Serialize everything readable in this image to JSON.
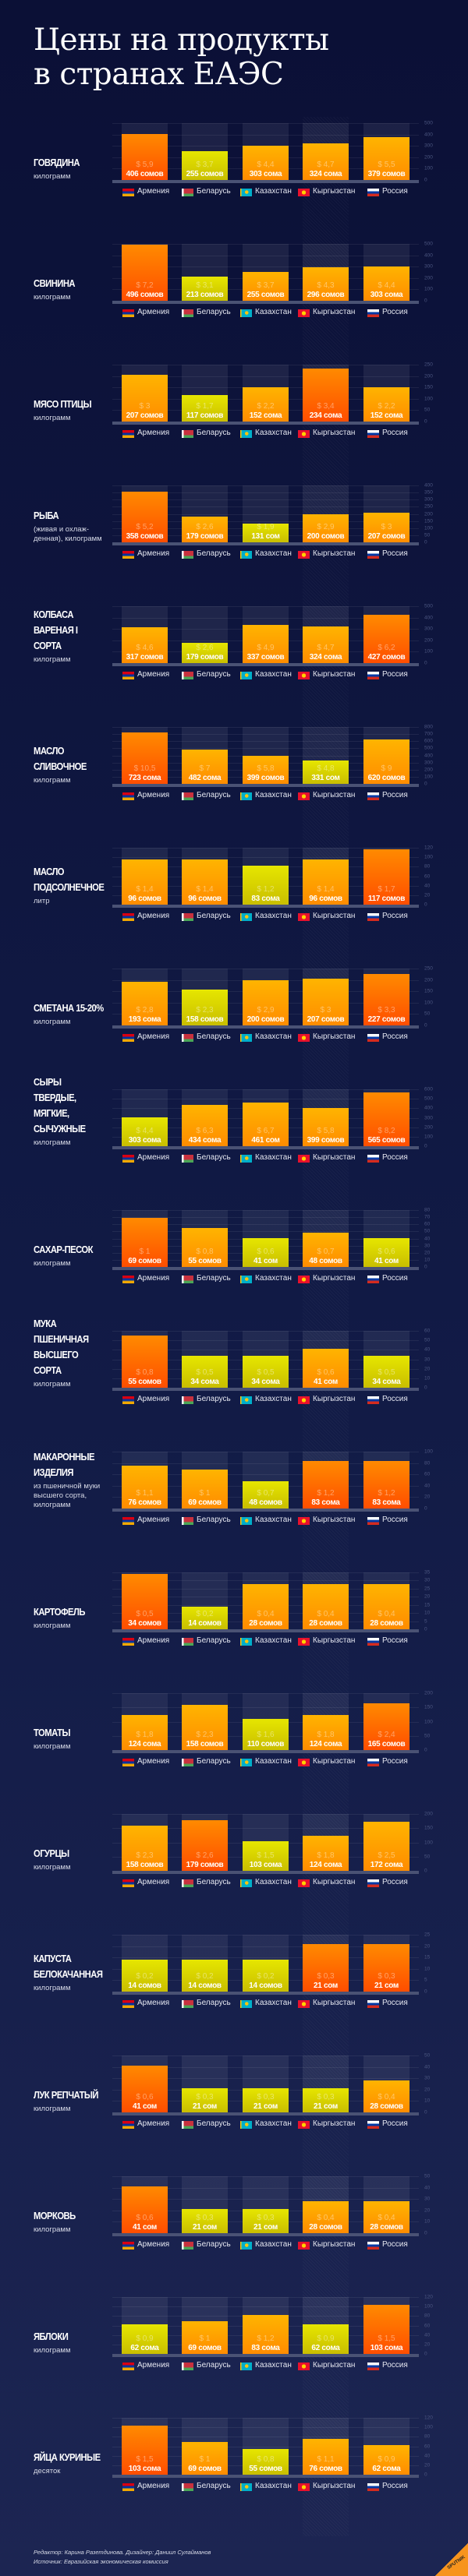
{
  "title": "Цены на продукты\nв странах ЕАЭС",
  "colors": {
    "max": [
      "#ff8a00",
      "#ff4e00"
    ],
    "mid": [
      "#ffb400",
      "#ff8c00"
    ],
    "min": [
      "#e6e600",
      "#c9be00"
    ],
    "background": "#0b1036"
  },
  "countries": [
    {
      "name": "Армения",
      "flag": "armenia-flag"
    },
    {
      "name": "Беларусь",
      "flag": "belarus-flag"
    },
    {
      "name": "Казахстан",
      "flag": "kazakhstan-flag"
    },
    {
      "name": "Кыргызстан",
      "flag": "kyrgyzstan-flag"
    },
    {
      "name": "Россия",
      "flag": "russia-flag"
    }
  ],
  "chart_data": {
    "type": "bar",
    "categories": [
      "Армения",
      "Беларусь",
      "Казахстан",
      "Кыргызстан",
      "Россия"
    ],
    "products": [
      {
        "name": "ГОВЯДИНА",
        "unit": "килограмм",
        "ticks": [
          0,
          100,
          200,
          300,
          400,
          500
        ],
        "values": [
          406,
          255,
          303,
          324,
          379
        ],
        "labels": [
          "406 сомов",
          "255 сомов",
          "303 сома",
          "324 сома",
          "379 сомов"
        ],
        "usd": [
          "$ 5,9",
          "$ 3,7",
          "$ 4,4",
          "$ 4,7",
          "$ 5,5"
        ]
      },
      {
        "name": "СВИНИНА",
        "unit": "килограмм",
        "ticks": [
          0,
          100,
          200,
          300,
          400,
          500
        ],
        "values": [
          496,
          213,
          255,
          296,
          303
        ],
        "labels": [
          "496 сомов",
          "213 сомов",
          "255 сомов",
          "296 сомов",
          "303 сома"
        ],
        "usd": [
          "$ 7,2",
          "$ 3,1",
          "$ 3,7",
          "$ 4,3",
          "$ 4,4"
        ]
      },
      {
        "name": "МЯСО ПТИЦЫ",
        "unit": "килограмм",
        "ticks": [
          0,
          50,
          100,
          150,
          200,
          250
        ],
        "values": [
          207,
          117,
          152,
          234,
          152
        ],
        "labels": [
          "207 сомов",
          "117 сомов",
          "152 сома",
          "234 сома",
          "152 сома"
        ],
        "usd": [
          "$ 3",
          "$ 1,7",
          "$ 2,2",
          "$ 3,4",
          "$ 2,2"
        ]
      },
      {
        "name": "РЫБА",
        "unit": "(живая и охлаж-\nденная), килограмм",
        "ticks": [
          0,
          50,
          100,
          150,
          200,
          250,
          300,
          350,
          400
        ],
        "values": [
          358,
          179,
          131,
          200,
          207
        ],
        "labels": [
          "358 сомов",
          "179 сомов",
          "131 сом",
          "200 сомов",
          "207 сомов"
        ],
        "usd": [
          "$ 5,2",
          "$ 2,6",
          "$ 1,9",
          "$ 2,9",
          "$ 3"
        ]
      },
      {
        "name": "КОЛБАСА\nВАРЕНАЯ I СОРТА",
        "unit": "килограмм",
        "ticks": [
          0,
          100,
          200,
          300,
          400,
          500
        ],
        "values": [
          317,
          179,
          337,
          324,
          427
        ],
        "labels": [
          "317 сомов",
          "179 сомов",
          "337 сомов",
          "324 сома",
          "427 сомов"
        ],
        "usd": [
          "$ 4,6",
          "$ 2,6",
          "$ 4,9",
          "$ 4,7",
          "$ 6,2"
        ]
      },
      {
        "name": "МАСЛО\nСЛИВОЧНОЕ",
        "unit": "килограмм",
        "ticks": [
          0,
          100,
          200,
          300,
          400,
          500,
          600,
          700,
          800
        ],
        "values": [
          723,
          482,
          399,
          331,
          620
        ],
        "labels": [
          "723 сома",
          "482 сома",
          "399 сомов",
          "331 сом",
          "620 сомов"
        ],
        "usd": [
          "$ 10,5",
          "$ 7",
          "$ 5,8",
          "$ 4,8",
          "$ 9"
        ]
      },
      {
        "name": "МАСЛО\nПОДСОЛНЕЧНОЕ",
        "unit": "литр",
        "ticks": [
          0,
          20,
          40,
          60,
          80,
          100,
          120
        ],
        "values": [
          96,
          96,
          83,
          96,
          117
        ],
        "labels": [
          "96 сомов",
          "96 сомов",
          "83 сома",
          "96 сомов",
          "117 сомов"
        ],
        "usd": [
          "$ 1,4",
          "$ 1,4",
          "$ 1,2",
          "$ 1,4",
          "$ 1,7"
        ]
      },
      {
        "name": "СМЕТАНА 15-20%",
        "unit": "килограмм",
        "ticks": [
          0,
          50,
          100,
          150,
          200,
          250
        ],
        "values": [
          193,
          158,
          200,
          207,
          227
        ],
        "labels": [
          "193 сома",
          "158 сомов",
          "200 сомов",
          "207 сомов",
          "227 сомов"
        ],
        "usd": [
          "$ 2,8",
          "$ 2,3",
          "$ 2,9",
          "$ 3",
          "$ 3,3"
        ]
      },
      {
        "name": "СЫРЫ ТВЕРДЫЕ,\nМЯГКИЕ,\nСЫЧУЖНЫЕ",
        "unit": "килограмм",
        "ticks": [
          0,
          100,
          200,
          300,
          400,
          500,
          600
        ],
        "values": [
          303,
          434,
          461,
          399,
          565
        ],
        "labels": [
          "303 сома",
          "434 сома",
          "461 сом",
          "399 сомов",
          "565 сомов"
        ],
        "usd": [
          "$ 4,4",
          "$ 6,3",
          "$ 6,7",
          "$ 5,8",
          "$ 8,2"
        ]
      },
      {
        "name": "САХАР-ПЕСОК",
        "unit": "килограмм",
        "ticks": [
          0,
          10,
          20,
          30,
          40,
          50,
          60,
          70,
          80
        ],
        "values": [
          69,
          55,
          41,
          48,
          41
        ],
        "labels": [
          "69 сомов",
          "55 сомов",
          "41 сом",
          "48 сомов",
          "41 сом"
        ],
        "usd": [
          "$ 1",
          "$ 0,8",
          "$ 0,6",
          "$ 0,7",
          "$ 0,6"
        ]
      },
      {
        "name": "МУКА ПШЕНИЧНАЯ\nВЫСШЕГО СОРТА",
        "unit": "килограмм",
        "ticks": [
          0,
          10,
          20,
          30,
          40,
          50,
          60
        ],
        "values": [
          55,
          34,
          34,
          41,
          34
        ],
        "labels": [
          "55 сомов",
          "34 сома",
          "34 сома",
          "41 сом",
          "34 сома"
        ],
        "usd": [
          "$ 0,8",
          "$ 0,5",
          "$ 0,5",
          "$ 0,6",
          "$ 0,5"
        ]
      },
      {
        "name": "МАКАРОННЫЕ\nИЗДЕЛИЯ",
        "unit": "из пшеничной муки\nвысшего сорта,\nкилограмм",
        "ticks": [
          0,
          20,
          40,
          60,
          80,
          100
        ],
        "values": [
          76,
          69,
          48,
          83,
          83
        ],
        "labels": [
          "76 сомов",
          "69 сомов",
          "48 сомов",
          "83 сома",
          "83 сома"
        ],
        "usd": [
          "$ 1,1",
          "$ 1",
          "$ 0,7",
          "$ 1,2",
          "$ 1,2"
        ]
      },
      {
        "name": "КАРТОФЕЛЬ",
        "unit": "килограмм",
        "ticks": [
          0,
          5,
          10,
          15,
          20,
          25,
          30,
          35
        ],
        "values": [
          34,
          14,
          28,
          28,
          28
        ],
        "labels": [
          "34 сомов",
          "14 сомов",
          "28 сомов",
          "28 сомов",
          "28 сомов"
        ],
        "usd": [
          "$ 0,5",
          "$ 0,2",
          "$ 0,4",
          "$ 0,4",
          "$ 0,4"
        ]
      },
      {
        "name": "ТОМАТЫ",
        "unit": "килограмм",
        "ticks": [
          0,
          50,
          100,
          150,
          200
        ],
        "values": [
          124,
          158,
          110,
          124,
          165
        ],
        "labels": [
          "124 сома",
          "158 сомов",
          "110 сомов",
          "124 сома",
          "165 сомов"
        ],
        "usd": [
          "$ 1,8",
          "$ 2,3",
          "$ 1,6",
          "$ 1,8",
          "$ 2,4"
        ]
      },
      {
        "name": "ОГУРЦЫ",
        "unit": "килограмм",
        "ticks": [
          0,
          50,
          100,
          150,
          200
        ],
        "values": [
          158,
          179,
          103,
          124,
          172
        ],
        "labels": [
          "158 сомов",
          "179 сомов",
          "103 сома",
          "124 сома",
          "172 сома"
        ],
        "usd": [
          "$ 2,3",
          "$ 2,6",
          "$ 1,5",
          "$ 1,8",
          "$ 2,5"
        ]
      },
      {
        "name": "КАПУСТА\nБЕЛОКАЧАННАЯ",
        "unit": "килограмм",
        "ticks": [
          0,
          5,
          10,
          15,
          20,
          25
        ],
        "values": [
          14,
          14,
          14,
          21,
          21
        ],
        "labels": [
          "14 сомов",
          "14 сомов",
          "14 сомов",
          "21 сом",
          "21 сом"
        ],
        "usd": [
          "$ 0,2",
          "$ 0,2",
          "$ 0,2",
          "$ 0,3",
          "$ 0,3"
        ]
      },
      {
        "name": "ЛУК РЕПЧАТЫЙ",
        "unit": "килограмм",
        "ticks": [
          0,
          10,
          20,
          30,
          40,
          50
        ],
        "values": [
          41,
          21,
          21,
          21,
          28
        ],
        "labels": [
          "41 сом",
          "21 сом",
          "21 сом",
          "21 сом",
          "28 сомов"
        ],
        "usd": [
          "$ 0,6",
          "$ 0,3",
          "$ 0,3",
          "$ 0,3",
          "$ 0,4"
        ]
      },
      {
        "name": "МОРКОВЬ",
        "unit": "килограмм",
        "ticks": [
          0,
          10,
          20,
          30,
          40,
          50
        ],
        "values": [
          41,
          21,
          21,
          28,
          28
        ],
        "labels": [
          "41 сом",
          "21 сом",
          "21 сом",
          "28 сомов",
          "28 сомов"
        ],
        "usd": [
          "$ 0,6",
          "$ 0,3",
          "$ 0,3",
          "$ 0,4",
          "$ 0,4"
        ]
      },
      {
        "name": "ЯБЛОКИ",
        "unit": "килограмм",
        "ticks": [
          0,
          20,
          40,
          60,
          80,
          100,
          120
        ],
        "values": [
          62,
          69,
          83,
          62,
          103
        ],
        "labels": [
          "62 сома",
          "69 сомов",
          "83 сома",
          "62 сома",
          "103 сома"
        ],
        "usd": [
          "$ 0,9",
          "$ 1",
          "$ 1,2",
          "$ 0,9",
          "$ 1,5"
        ]
      },
      {
        "name": "ЯЙЦА КУРИНЫЕ",
        "unit": "десяток",
        "ticks": [
          0,
          20,
          40,
          60,
          80,
          100,
          120
        ],
        "values": [
          103,
          69,
          55,
          76,
          62
        ],
        "labels": [
          "103 сома",
          "69 сомов",
          "55 сомов",
          "76 сомов",
          "62 сома"
        ],
        "usd": [
          "$ 1,5",
          "$ 1",
          "$ 0,8",
          "$ 1,1",
          "$ 0,9"
        ]
      }
    ]
  },
  "footer": {
    "credits": "Редактор: Карина Разетдинова. Дизайнер: Даниил Сулайманов",
    "source": "Источник: Евразийская экономическая комиссия",
    "logo": "SPUTNIK"
  }
}
